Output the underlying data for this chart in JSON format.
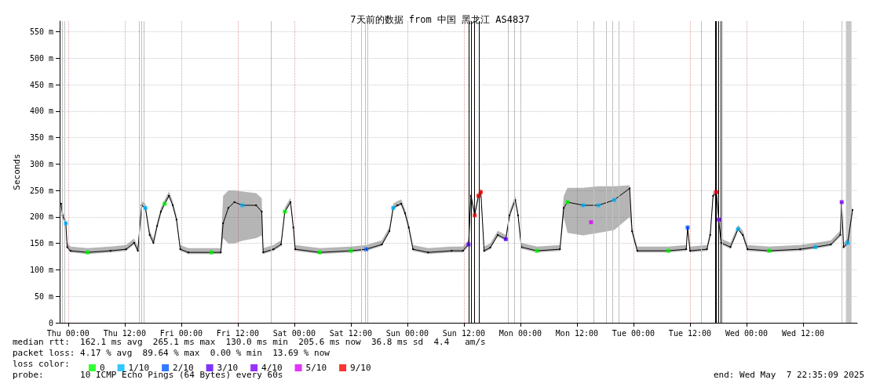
{
  "chart_data": {
    "type": "line",
    "title": "7天前的数据 from 中国 黑龙江 AS4837",
    "ylabel": "Seconds",
    "legend_title": "loss color:",
    "legend": "bottom",
    "grid": true,
    "marker": "square",
    "xlim": [
      "2025-04-30T22:12",
      "2025-05-07T23:30"
    ],
    "xticks": [
      {
        "value": "2025-05-01T00:00",
        "label": "Thu 00:00"
      },
      {
        "value": "2025-05-01T12:00",
        "label": "Thu 12:00"
      },
      {
        "value": "2025-05-02T00:00",
        "label": "Fri 00:00"
      },
      {
        "value": "2025-05-02T12:00",
        "label": "Fri 12:00"
      },
      {
        "value": "2025-05-03T00:00",
        "label": "Sat 00:00"
      },
      {
        "value": "2025-05-03T12:00",
        "label": "Sat 12:00"
      },
      {
        "value": "2025-05-04T00:00",
        "label": "Sun 00:00"
      },
      {
        "value": "2025-05-04T12:00",
        "label": "Sun 12:00"
      },
      {
        "value": "2025-05-05T00:00",
        "label": "Mon 00:00"
      },
      {
        "value": "2025-05-05T12:00",
        "label": "Mon 12:00"
      },
      {
        "value": "2025-05-06T00:00",
        "label": "Tue 00:00"
      },
      {
        "value": "2025-05-06T12:00",
        "label": "Tue 12:00"
      },
      {
        "value": "2025-05-07T00:00",
        "label": "Wed 00:00"
      },
      {
        "value": "2025-05-07T12:00",
        "label": "Wed 12:00"
      }
    ],
    "ylim": [
      0,
      570
    ],
    "yticks": [
      0,
      {
        "value": 50,
        "label": "50 m"
      },
      {
        "value": 100,
        "label": "100 m"
      },
      {
        "value": 150,
        "label": "150 m"
      },
      {
        "value": 200,
        "label": "200 m"
      },
      {
        "value": 250,
        "label": "250 m"
      },
      {
        "value": 300,
        "label": "300 m"
      },
      {
        "value": 350,
        "label": "350 m"
      },
      {
        "value": 400,
        "label": "400 m"
      },
      {
        "value": 450,
        "label": "450 m"
      },
      {
        "value": 500,
        "label": "500 m"
      },
      {
        "value": 550,
        "label": "550 m"
      }
    ],
    "series": [
      {
        "color": "#000000",
        "x": [
          "2025-04-30T22:30",
          "2025-04-30T22:48",
          "2025-04-30T23:30",
          "2025-04-30T23:48",
          "2025-05-01T00:30",
          "2025-05-01T04:06",
          "2025-05-01T09:00",
          "2025-05-01T12:18",
          "2025-05-01T14:00",
          "2025-05-01T14:48",
          "2025-05-01T15:36",
          "2025-05-01T16:24",
          "2025-05-01T17:18",
          "2025-05-01T18:06",
          "2025-05-01T18:54",
          "2025-05-01T19:42",
          "2025-05-01T20:30",
          "2025-05-01T21:24",
          "2025-05-01T22:12",
          "2025-05-01T23:00",
          "2025-05-01T23:48",
          "2025-05-02T01:30",
          "2025-05-02T06:24",
          "2025-05-02T08:24",
          "2025-05-02T08:54",
          "2025-05-02T10:00",
          "2025-05-02T11:18",
          "2025-05-02T13:00",
          "2025-05-02T15:54",
          "2025-05-02T17:06",
          "2025-05-02T17:24",
          "2025-05-02T19:36",
          "2025-05-02T21:12",
          "2025-05-02T22:00",
          "2025-05-02T23:12",
          "2025-05-02T23:48",
          "2025-05-03T00:12",
          "2025-05-03T05:24",
          "2025-05-03T12:00",
          "2025-05-03T15:18",
          "2025-05-03T18:36",
          "2025-05-03T20:12",
          "2025-05-03T21:00",
          "2025-05-03T21:54",
          "2025-05-03T22:42",
          "2025-05-03T23:30",
          "2025-05-04T00:18",
          "2025-05-04T01:12",
          "2025-05-04T04:24",
          "2025-05-04T09:24",
          "2025-05-04T11:48",
          "2025-05-04T13:00",
          "2025-05-04T13:30",
          "2025-05-04T14:18",
          "2025-05-04T15:06",
          "2025-05-04T15:36",
          "2025-05-04T16:18",
          "2025-05-04T17:36",
          "2025-05-04T19:12",
          "2025-05-04T20:54",
          "2025-05-04T21:42",
          "2025-05-04T22:54",
          "2025-05-04T23:30",
          "2025-05-05T00:12",
          "2025-05-05T03:30",
          "2025-05-05T08:24",
          "2025-05-05T09:12",
          "2025-05-05T10:00",
          "2025-05-05T13:18",
          "2025-05-05T16:36",
          "2025-05-05T19:54",
          "2025-05-05T23:12",
          "2025-05-05T23:42",
          "2025-05-06T00:48",
          "2025-05-06T07:24",
          "2025-05-06T11:12",
          "2025-05-06T11:30",
          "2025-05-06T12:00",
          "2025-05-06T15:36",
          "2025-05-06T16:18",
          "2025-05-06T16:54",
          "2025-05-06T17:36",
          "2025-05-06T18:06",
          "2025-05-06T18:36",
          "2025-05-06T20:36",
          "2025-05-06T22:12",
          "2025-05-06T23:12",
          "2025-05-07T00:12",
          "2025-05-07T04:48",
          "2025-05-07T11:24",
          "2025-05-07T14:36",
          "2025-05-07T17:54",
          "2025-05-07T19:54",
          "2025-05-07T20:12",
          "2025-05-07T20:36",
          "2025-05-07T21:30",
          "2025-05-07T22:30"
        ],
        "values": [
          225,
          203,
          188,
          143,
          136,
          133,
          136,
          139,
          151,
          136,
          222,
          217,
          166,
          151,
          183,
          210,
          225,
          240,
          222,
          195,
          139,
          133,
          133,
          133,
          188,
          217,
          228,
          222,
          222,
          210,
          133,
          139,
          148,
          210,
          228,
          180,
          139,
          133,
          136,
          139,
          148,
          173,
          217,
          222,
          225,
          207,
          180,
          139,
          133,
          136,
          136,
          148,
          240,
          203,
          240,
          247,
          136,
          142,
          166,
          158,
          203,
          232,
          203,
          143,
          136,
          139,
          217,
          228,
          222,
          222,
          232,
          254,
          173,
          136,
          136,
          139,
          180,
          136,
          139,
          166,
          240,
          247,
          195,
          151,
          143,
          177,
          166,
          139,
          136,
          139,
          143,
          148,
          166,
          228,
          143,
          151,
          213
        ],
        "upper": [
          233,
          211,
          196,
          151,
          144,
          141,
          144,
          147,
          159,
          144,
          230,
          225,
          174,
          159,
          191,
          218,
          233,
          248,
          230,
          203,
          147,
          141,
          141,
          141,
          240,
          250,
          250,
          248,
          245,
          235,
          141,
          147,
          156,
          218,
          236,
          188,
          147,
          141,
          144,
          147,
          156,
          181,
          225,
          230,
          233,
          215,
          188,
          147,
          141,
          144,
          144,
          156,
          248,
          211,
          248,
          255,
          144,
          150,
          174,
          166,
          211,
          240,
          211,
          151,
          144,
          147,
          240,
          255,
          255,
          258,
          258,
          260,
          181,
          144,
          144,
          147,
          188,
          144,
          147,
          174,
          248,
          255,
          203,
          159,
          151,
          185,
          174,
          147,
          144,
          147,
          151,
          156,
          174,
          236,
          151,
          159,
          221
        ],
        "lower": [
          222,
          200,
          185,
          140,
          133,
          130,
          133,
          136,
          148,
          133,
          219,
          214,
          163,
          148,
          180,
          207,
          222,
          237,
          219,
          192,
          136,
          130,
          130,
          130,
          160,
          150,
          150,
          155,
          160,
          165,
          130,
          136,
          145,
          207,
          225,
          177,
          136,
          130,
          133,
          136,
          145,
          170,
          214,
          219,
          222,
          204,
          177,
          136,
          130,
          133,
          133,
          145,
          237,
          200,
          237,
          244,
          133,
          139,
          163,
          155,
          200,
          229,
          200,
          140,
          133,
          136,
          200,
          170,
          165,
          170,
          175,
          200,
          170,
          133,
          133,
          136,
          177,
          133,
          136,
          163,
          237,
          244,
          192,
          148,
          140,
          174,
          163,
          136,
          133,
          136,
          140,
          145,
          163,
          225,
          140,
          148,
          210
        ]
      },
      {
        "type": "scatter",
        "name": "0",
        "color": "#00ff00",
        "x": [
          "2025-05-01T04:06",
          "2025-05-01T20:30",
          "2025-05-02T06:24",
          "2025-05-02T22:00",
          "2025-05-03T05:24",
          "2025-05-03T12:00",
          "2025-05-05T03:30",
          "2025-05-05T10:00",
          "2025-05-06T07:24",
          "2025-05-07T04:48"
        ],
        "values": [
          133,
          225,
          133,
          210,
          133,
          136,
          136,
          228,
          136,
          136
        ]
      },
      {
        "type": "scatter",
        "name": "1/10",
        "color": "#00b8ff",
        "x": [
          "2025-04-30T23:30",
          "2025-05-01T16:24",
          "2025-05-02T13:00",
          "2025-05-03T21:00",
          "2025-05-05T13:18",
          "2025-05-05T16:36",
          "2025-05-05T19:54",
          "2025-05-06T22:12",
          "2025-05-07T14:36",
          "2025-05-07T21:30"
        ],
        "values": [
          188,
          217,
          222,
          217,
          222,
          222,
          232,
          177,
          143,
          151
        ]
      },
      {
        "type": "scatter",
        "name": "2/10",
        "color": "#0059ff",
        "x": [
          "2025-05-03T15:18",
          "2025-05-06T11:30"
        ],
        "values": [
          139,
          180
        ]
      },
      {
        "type": "scatter",
        "name": "3/10",
        "color": "#5e00ff",
        "x": [
          "2025-05-04T13:00",
          "2025-05-04T20:54"
        ],
        "values": [
          148,
          158
        ]
      },
      {
        "type": "scatter",
        "name": "4/10",
        "color": "#7e00ff",
        "x": [
          "2025-05-06T18:06",
          "2025-05-07T20:12"
        ],
        "values": [
          195,
          228
        ]
      },
      {
        "type": "scatter",
        "name": "5/10",
        "color": "#dd00ff",
        "x": [
          "2025-05-05T15:00"
        ],
        "values": [
          190
        ]
      },
      {
        "type": "scatter",
        "name": "9/10",
        "color": "#ff0000",
        "x": [
          "2025-05-04T14:18",
          "2025-05-04T15:06",
          "2025-05-04T15:36",
          "2025-05-06T17:36"
        ],
        "values": [
          203,
          240,
          247,
          247
        ]
      }
    ],
    "ref_lines": [
      {
        "axis": "x",
        "value": "2025-04-30T22:48",
        "color": "#c0c0c0"
      },
      {
        "axis": "x",
        "value": "2025-04-30T23:18",
        "color": "#c0c0c0"
      },
      {
        "axis": "x",
        "value": "2025-05-01T15:06",
        "color": "#c0c0c0"
      },
      {
        "axis": "x",
        "value": "2025-05-01T15:36",
        "color": "#c0c0c0"
      },
      {
        "axis": "x",
        "value": "2025-05-01T16:06",
        "color": "#c0c0c0"
      },
      {
        "axis": "x",
        "value": "2025-05-02T19:06",
        "color": "#c0c0c0"
      },
      {
        "axis": "x",
        "value": "2025-05-03T14:18",
        "color": "#c0c0c0"
      },
      {
        "axis": "x",
        "value": "2025-05-03T15:06",
        "color": "#c0c0c0"
      },
      {
        "axis": "x",
        "value": "2025-05-03T15:36",
        "color": "#c0c0c0"
      },
      {
        "axis": "x",
        "value": "2025-05-04T13:00",
        "color": "#000000"
      },
      {
        "axis": "x",
        "value": "2025-05-04T13:36",
        "color": "#000000"
      },
      {
        "axis": "x",
        "value": "2025-05-04T14:18",
        "color": "#000000"
      },
      {
        "axis": "x",
        "value": "2025-05-04T15:18",
        "color": "#000000"
      },
      {
        "axis": "x",
        "value": "2025-05-04T21:24",
        "color": "#c0c0c0"
      },
      {
        "axis": "x",
        "value": "2025-05-04T22:42",
        "color": "#c0c0c0"
      },
      {
        "axis": "x",
        "value": "2025-05-05T00:00",
        "color": "#c0c0c0"
      },
      {
        "axis": "x",
        "value": "2025-05-05T15:30",
        "color": "#c0c0c0"
      },
      {
        "axis": "x",
        "value": "2025-05-05T18:18",
        "color": "#c0c0c0"
      },
      {
        "axis": "x",
        "value": "2025-05-05T19:36",
        "color": "#c0c0c0"
      },
      {
        "axis": "x",
        "value": "2025-05-05T20:54",
        "color": "#c0c0c0"
      },
      {
        "axis": "x",
        "value": "2025-05-06T14:18",
        "color": "#c0c0c0"
      },
      {
        "axis": "x",
        "value": "2025-05-06T17:18",
        "color": "#000000"
      },
      {
        "axis": "x",
        "value": "2025-05-06T17:36",
        "color": "#000000"
      },
      {
        "axis": "x",
        "value": "2025-05-06T18:06",
        "color": "#000000"
      },
      {
        "axis": "x",
        "value": "2025-05-06T18:36",
        "color": "#000000"
      },
      {
        "axis": "x",
        "value": "2025-05-06T18:54",
        "color": "#c0c0c0"
      },
      {
        "axis": "x",
        "value": "2025-05-07T20:12",
        "color": "#c0c0c0"
      }
    ],
    "bands": [
      {
        "axis": "x",
        "from": "2025-05-07T21:06",
        "to": "2025-05-07T22:18",
        "color": "#c8c8c8"
      }
    ],
    "annotations": [
      "median rtt:  162.1 ms avg  265.1 ms max  130.0 ms min  205.6 ms now  36.8 ms sd  4.4   am/s",
      "packet loss: 4.17 % avg  89.64 % max  0.00 % min  13.69 % now",
      "probe:       10 ICMP Echo Pings (64 Bytes) every 60s",
      "end: Wed May  7 22:35:09 2025"
    ]
  }
}
